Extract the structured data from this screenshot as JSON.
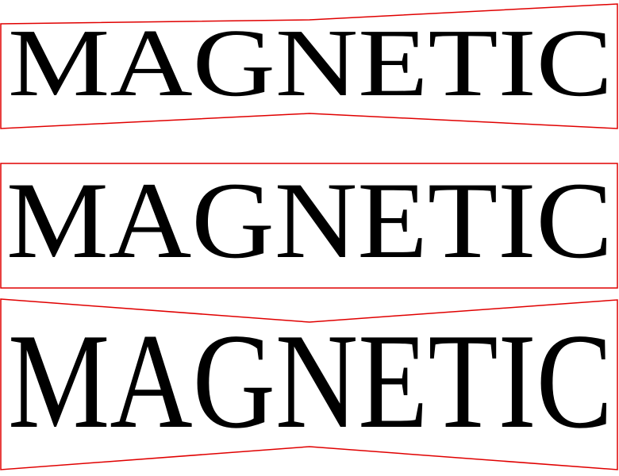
{
  "panels": [
    {
      "text": "MAGNETIC"
    },
    {
      "text": "MAGNETIC"
    },
    {
      "text": "MAGNETIC"
    }
  ]
}
